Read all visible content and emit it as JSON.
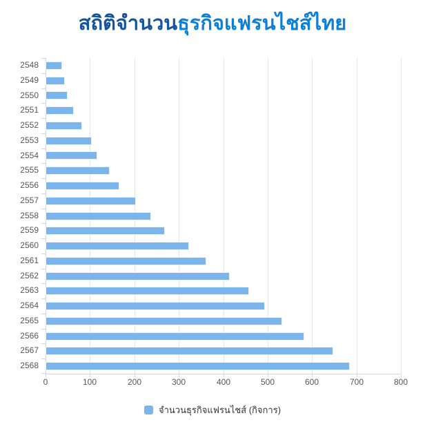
{
  "title": {
    "part1": "สถิติจำนวน",
    "part2": "ธุรกิจแฟรนไชส์ไทย"
  },
  "legend": {
    "label": "จำนวนธุรกิจแฟรนไชส์ (กิจการ)"
  },
  "colors": {
    "title_dark": "#17549e",
    "title_light": "#0d80d6",
    "bar": "#7cb5ec",
    "gridline": "#e6e6e6",
    "axis_line": "#ccd6eb",
    "axis_label": "#555555",
    "legend_text": "#333333"
  },
  "chart_data": {
    "type": "bar",
    "orientation": "horizontal",
    "title": "สถิติจำนวนธุรกิจแฟรนไชส์ไทย",
    "series_name": "จำนวนธุรกิจแฟรนไชส์ (กิจการ)",
    "categories": [
      "2548",
      "2549",
      "2550",
      "2551",
      "2552",
      "2553",
      "2554",
      "2555",
      "2556",
      "2557",
      "2558",
      "2559",
      "2560",
      "2561",
      "2562",
      "2563",
      "2564",
      "2565",
      "2566",
      "2567",
      "2568"
    ],
    "values": [
      38,
      43,
      49,
      64,
      82,
      104,
      117,
      145,
      166,
      204,
      238,
      268,
      323,
      362,
      414,
      458,
      494,
      533,
      583,
      648,
      685
    ],
    "xlabel": "",
    "ylabel": "",
    "value_axis": {
      "min": 0,
      "max": 800,
      "tick_interval": 100,
      "tick_labels": [
        "0",
        "100",
        "200",
        "300",
        "400",
        "500",
        "600",
        "700",
        "800"
      ]
    },
    "grid": true,
    "legend_position": "bottom"
  }
}
